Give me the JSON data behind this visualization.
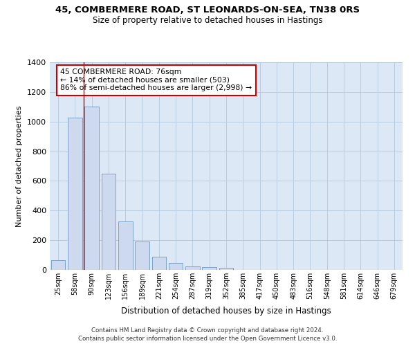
{
  "title": "45, COMBERMERE ROAD, ST LEONARDS-ON-SEA, TN38 0RS",
  "subtitle": "Size of property relative to detached houses in Hastings",
  "xlabel": "Distribution of detached houses by size in Hastings",
  "ylabel": "Number of detached properties",
  "bar_labels": [
    "25sqm",
    "58sqm",
    "90sqm",
    "123sqm",
    "156sqm",
    "189sqm",
    "221sqm",
    "254sqm",
    "287sqm",
    "319sqm",
    "352sqm",
    "385sqm",
    "417sqm",
    "450sqm",
    "483sqm",
    "516sqm",
    "548sqm",
    "581sqm",
    "614sqm",
    "646sqm",
    "679sqm"
  ],
  "bar_values": [
    65,
    1025,
    1100,
    650,
    325,
    190,
    90,
    48,
    25,
    18,
    12,
    0,
    0,
    0,
    0,
    0,
    0,
    0,
    0,
    0,
    0
  ],
  "bar_color": "#cdd9ee",
  "bar_edge_color": "#7098c0",
  "axes_bg_color": "#dce8f5",
  "background_color": "#ffffff",
  "grid_color": "#b8ccdf",
  "red_line_color": "#cc0000",
  "annotation_title": "45 COMBERMERE ROAD: 76sqm",
  "annotation_line1": "← 14% of detached houses are smaller (503)",
  "annotation_line2": "86% of semi-detached houses are larger (2,998) →",
  "annotation_box_color": "#ffffff",
  "annotation_box_edge": "#cc0000",
  "ylim": [
    0,
    1400
  ],
  "yticks": [
    0,
    200,
    400,
    600,
    800,
    1000,
    1200,
    1400
  ],
  "footer1": "Contains HM Land Registry data © Crown copyright and database right 2024.",
  "footer2": "Contains public sector information licensed under the Open Government Licence v3.0."
}
